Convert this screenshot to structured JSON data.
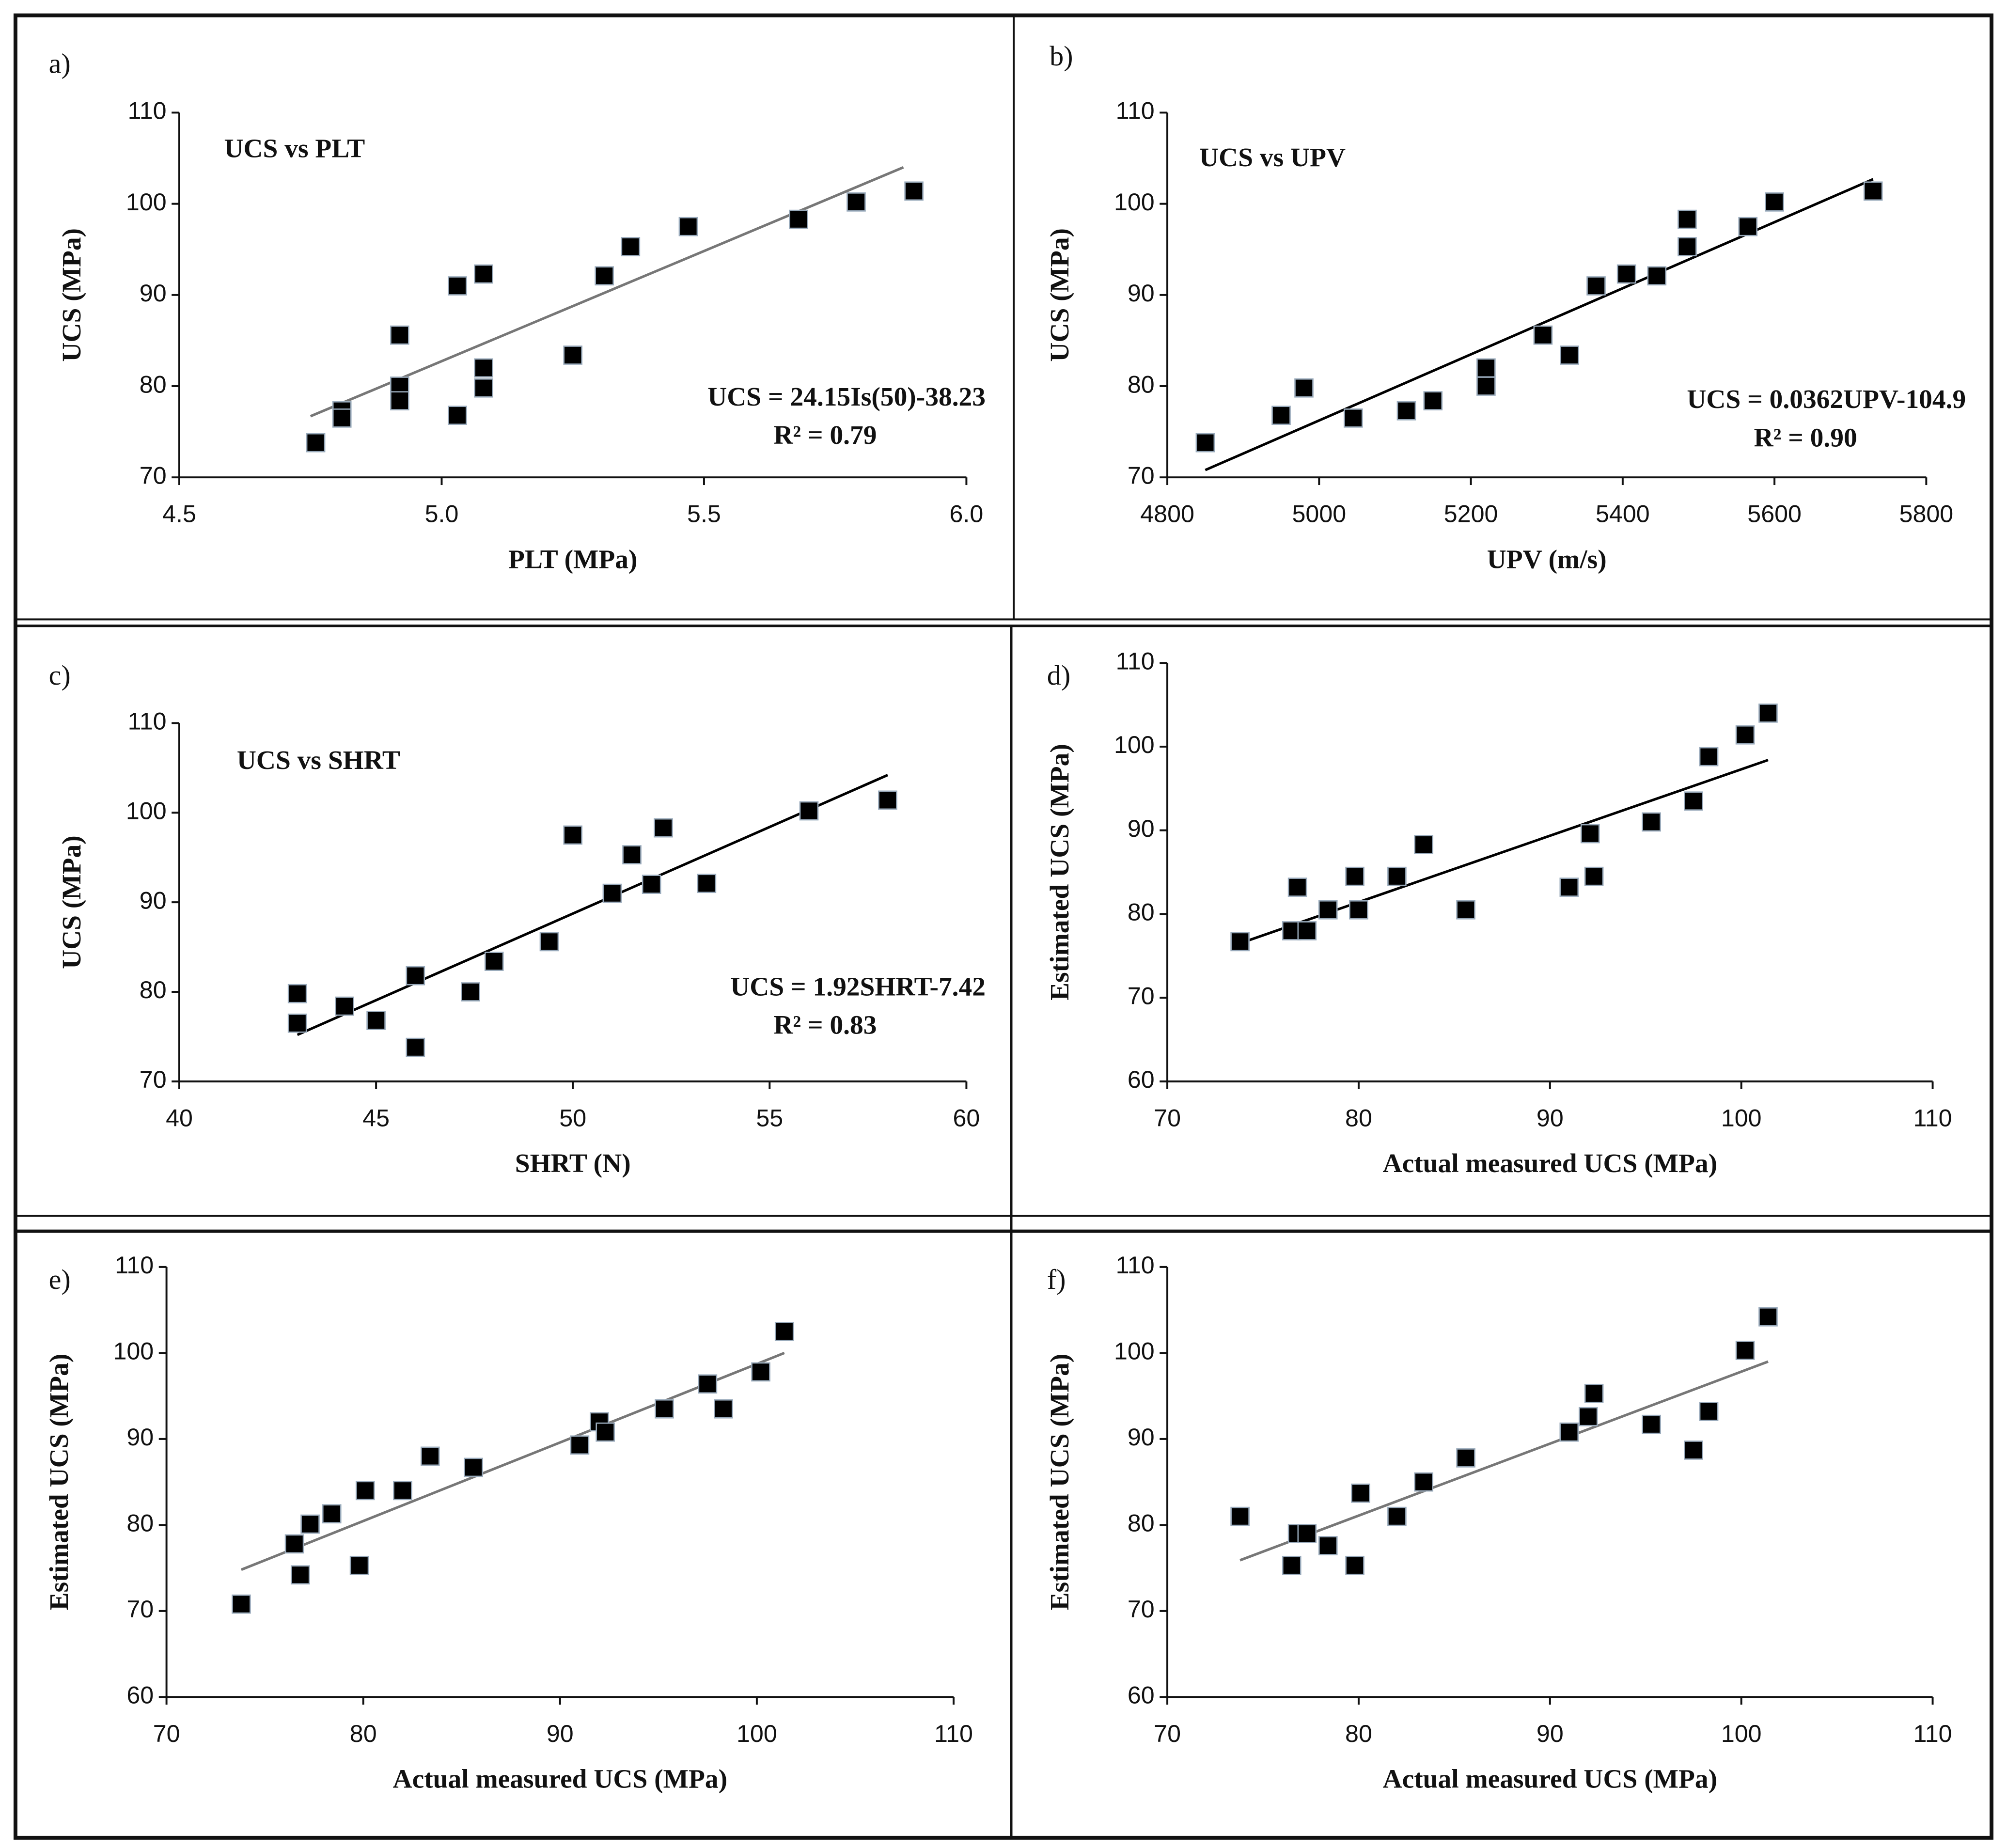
{
  "chart_data": [
    {
      "type": "scatter",
      "panel_label": "a)",
      "title": "UCS vs PLT",
      "x_label": "PLT (MPa)",
      "y_label": "UCS (MPa)",
      "equation": "UCS = 24.15Is(50)-38.23",
      "r_squared": "R² = 0.79",
      "x": [
        4.76,
        4.81,
        4.81,
        4.92,
        4.92,
        4.92,
        5.03,
        5.03,
        5.08,
        5.08,
        5.08,
        5.25,
        5.31,
        5.36,
        5.47,
        5.68,
        5.79,
        5.9
      ],
      "y": [
        73.8,
        77.3,
        76.5,
        85.6,
        80,
        78.4,
        91,
        76.8,
        92.3,
        82,
        79.8,
        83.4,
        92.1,
        95.3,
        97.5,
        98.3,
        100.2,
        101.4
      ],
      "trend_x": [
        4.75,
        5.88
      ],
      "trend_y": [
        76.7,
        104
      ],
      "xlim": [
        4.5,
        6.0
      ],
      "xticks": [
        4.5,
        {
          "value": 5,
          "label": "5.0"
        },
        5.5,
        {
          "value": 6,
          "label": "6.0"
        }
      ],
      "ylim": [
        70,
        110
      ],
      "yticks": [
        70,
        80,
        90,
        100,
        110
      ],
      "marker_color": "#000000",
      "line_color": "#777777"
    },
    {
      "type": "scatter",
      "panel_label": "b)",
      "title": "UCS vs UPV",
      "x_label": "UPV (m/s)",
      "y_label": "UCS (MPa)",
      "equation": "UCS = 0.0362UPV-104.9",
      "r_squared": "R² = 0.90",
      "x": [
        4850,
        4950,
        4980,
        5045,
        5115,
        5150,
        5220,
        5220,
        5295,
        5330,
        5365,
        5405,
        5445,
        5485,
        5485,
        5565,
        5600,
        5730
      ],
      "y": [
        73.8,
        76.8,
        79.8,
        76.5,
        77.3,
        78.4,
        82,
        80,
        85.6,
        83.4,
        91,
        92.3,
        92.1,
        98.3,
        95.3,
        97.5,
        100.2,
        101.4
      ],
      "trend_x": [
        4850,
        5730
      ],
      "trend_y": [
        70.8,
        102.7
      ],
      "xlim": [
        4800,
        5800
      ],
      "xticks": [
        4800,
        5000,
        5200,
        5400,
        5600,
        5800
      ],
      "ylim": [
        70,
        110
      ],
      "yticks": [
        70,
        80,
        90,
        100,
        110
      ],
      "marker_color": "#000000",
      "line_color": "#000000"
    },
    {
      "type": "scatter",
      "panel_label": "c)",
      "title": "UCS vs SHRT",
      "x_label": "SHRT  (N)",
      "y_label": "UCS (MPa)",
      "equation": "UCS = 1.92SHRT-7.42",
      "r_squared": "R² = 0.83",
      "x": [
        43,
        43,
        44.2,
        45,
        46,
        46,
        47.4,
        48,
        49.4,
        50,
        51,
        51.5,
        52,
        52.3,
        53.4,
        56,
        58
      ],
      "y": [
        79.8,
        76.5,
        78.4,
        76.8,
        81.8,
        73.8,
        80,
        83.4,
        85.6,
        97.5,
        91,
        95.3,
        92,
        98.3,
        92.1,
        100.2,
        101.4
      ],
      "trend_x": [
        43,
        58
      ],
      "trend_y": [
        75.2,
        104.2
      ],
      "xlim": [
        40,
        60
      ],
      "xticks": [
        40,
        45,
        50,
        55,
        60
      ],
      "ylim": [
        70,
        110
      ],
      "yticks": [
        70,
        80,
        90,
        100,
        110
      ],
      "marker_color": "#000000",
      "line_color": "#000000"
    },
    {
      "type": "scatter",
      "panel_label": "d)",
      "x_label": "Actual measured UCS (MPa)",
      "y_label": "Estimated UCS (MPa)",
      "x": [
        73.8,
        76.5,
        76.8,
        77.3,
        78.4,
        79.8,
        80,
        82,
        83.4,
        85.6,
        91,
        92.1,
        92.3,
        95.3,
        97.5,
        98.3,
        100.2,
        101.4
      ],
      "y": [
        76.7,
        78,
        83.2,
        78,
        80.5,
        84.5,
        80.5,
        84.5,
        88.3,
        80.5,
        83.2,
        89.6,
        84.5,
        91,
        93.5,
        98.8,
        101.4,
        104
      ],
      "trend_x": [
        73.8,
        101.4
      ],
      "trend_y": [
        76.5,
        98.4
      ],
      "xlim": [
        70,
        110
      ],
      "xticks": [
        70,
        80,
        90,
        100,
        110
      ],
      "ylim": [
        60,
        110
      ],
      "yticks": [
        60,
        70,
        80,
        90,
        100,
        110
      ],
      "marker_color": "#000000",
      "line_color": "#000000"
    },
    {
      "type": "scatter",
      "panel_label": "e)",
      "x_label": "Actual measured UCS (MPa)",
      "y_label": "Estimated UCS (MPa)",
      "x": [
        73.8,
        76.5,
        76.8,
        77.3,
        78.4,
        79.8,
        80.1,
        82,
        83.4,
        85.6,
        91,
        92,
        92.3,
        95.3,
        97.5,
        98.3,
        100.2,
        101.4
      ],
      "y": [
        70.8,
        77.8,
        74.2,
        80.1,
        81.3,
        75.3,
        84,
        84,
        88,
        86.7,
        89.3,
        92,
        90.8,
        93.5,
        96.4,
        93.5,
        97.8,
        102.5
      ],
      "trend_x": [
        73.8,
        101.4
      ],
      "trend_y": [
        74.8,
        100
      ],
      "xlim": [
        70,
        110
      ],
      "xticks": [
        70,
        80,
        90,
        100,
        110
      ],
      "ylim": [
        60,
        110
      ],
      "yticks": [
        60,
        70,
        80,
        90,
        100,
        110
      ],
      "marker_color": "#000000",
      "line_color": "#777777"
    },
    {
      "type": "scatter",
      "panel_label": "f)",
      "x_label": "Actual measured UCS (MPa)",
      "y_label": "Estimated UCS (MPa)",
      "x": [
        73.8,
        76.5,
        76.8,
        77.3,
        78.4,
        79.8,
        80.1,
        82,
        83.4,
        85.6,
        91,
        92,
        92.3,
        95.3,
        97.5,
        98.3,
        100.2,
        101.4
      ],
      "y": [
        81,
        75.3,
        79,
        79,
        77.6,
        75.3,
        83.7,
        81,
        85,
        87.8,
        90.8,
        92.6,
        95.3,
        91.7,
        88.7,
        93.2,
        100.3,
        104.2
      ],
      "trend_x": [
        73.8,
        101.4
      ],
      "trend_y": [
        75.9,
        99
      ],
      "xlim": [
        70,
        110
      ],
      "xticks": [
        70,
        80,
        90,
        100,
        110
      ],
      "ylim": [
        60,
        110
      ],
      "yticks": [
        60,
        70,
        80,
        90,
        100,
        110
      ],
      "marker_color": "#000000",
      "line_color": "#777777"
    }
  ]
}
